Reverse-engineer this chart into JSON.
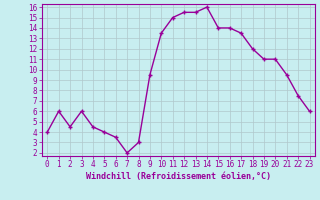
{
  "x": [
    0,
    1,
    2,
    3,
    4,
    5,
    6,
    7,
    8,
    9,
    10,
    11,
    12,
    13,
    14,
    15,
    16,
    17,
    18,
    19,
    20,
    21,
    22,
    23
  ],
  "y": [
    4,
    6,
    4.5,
    6,
    4.5,
    4,
    3.5,
    2,
    3,
    9.5,
    13.5,
    15,
    15.5,
    15.5,
    16,
    14,
    14,
    13.5,
    12,
    11,
    11,
    9.5,
    7.5,
    6
  ],
  "line_color": "#990099",
  "marker": "+",
  "marker_size": 3,
  "bg_color": "#c8eef0",
  "grid_color": "#b0c8cc",
  "xlabel": "Windchill (Refroidissement éolien,°C)",
  "xlabel_color": "#990099",
  "tick_color": "#990099",
  "ylim": [
    2,
    16
  ],
  "xlim": [
    -0.5,
    23.5
  ],
  "yticks": [
    2,
    3,
    4,
    5,
    6,
    7,
    8,
    9,
    10,
    11,
    12,
    13,
    14,
    15,
    16
  ],
  "xticks": [
    0,
    1,
    2,
    3,
    4,
    5,
    6,
    7,
    8,
    9,
    10,
    11,
    12,
    13,
    14,
    15,
    16,
    17,
    18,
    19,
    20,
    21,
    22,
    23
  ],
  "tick_fontsize": 5.5,
  "xlabel_fontsize": 6.0,
  "linewidth": 1.0,
  "spine_color": "#990099"
}
